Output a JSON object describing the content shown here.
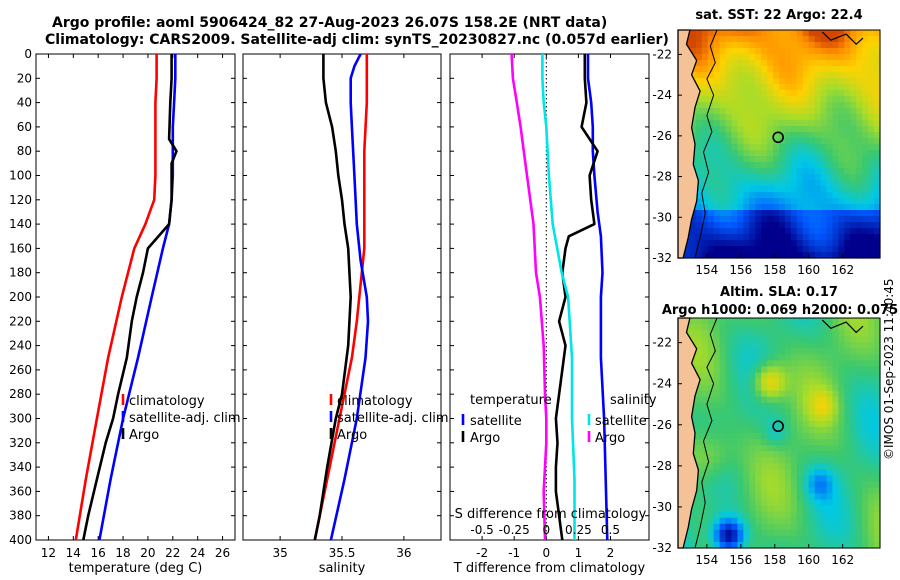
{
  "header": {
    "line1": "Argo profile: aoml 5906424_82 27-Aug-2023 26.07S 158.2E (NRT data)",
    "line2": "Climatology: CARS2009. Satellite-adj clim: synTS_20230827.nc (0.057d earlier)"
  },
  "watermark": "©IMOS 01-Sep-2023 11:40:45",
  "colors": {
    "climatology": "#ff0000",
    "satellite": "#0000ff",
    "argo": "#000000",
    "temp_diff": "#00e5e5",
    "sal_diff": "#ff00ff"
  },
  "chart_data": [
    {
      "type": "line",
      "name": "temperature-profile",
      "xlabel": "temperature (deg C)",
      "ylabel": "",
      "xlim": [
        11,
        27
      ],
      "ylim": [
        0,
        400
      ],
      "xticks": [
        12,
        14,
        16,
        18,
        20,
        22,
        24,
        26
      ],
      "yticks": [
        0,
        20,
        40,
        60,
        80,
        100,
        120,
        140,
        160,
        180,
        200,
        220,
        240,
        260,
        280,
        300,
        320,
        340,
        360,
        380,
        400
      ],
      "legend": [
        "climatology",
        "satellite-adj. clim",
        "Argo"
      ],
      "series": [
        {
          "name": "climatology",
          "color": "#ff0000",
          "depth": [
            0,
            20,
            40,
            80,
            100,
            120,
            140,
            160,
            200,
            250,
            300,
            350,
            400
          ],
          "values": [
            20.7,
            20.7,
            20.6,
            20.6,
            20.6,
            20.5,
            19.8,
            18.9,
            17.9,
            16.8,
            15.9,
            15.0,
            14.2
          ]
        },
        {
          "name": "satellite-adj. clim",
          "color": "#0000ff",
          "depth": [
            0,
            20,
            40,
            60,
            80,
            100,
            120,
            140,
            160,
            200,
            250,
            300,
            350,
            400
          ],
          "values": [
            22.2,
            22.2,
            22.1,
            22.0,
            22.0,
            22.0,
            21.9,
            21.7,
            21.2,
            20.3,
            19.2,
            18.0,
            17.0,
            16.1
          ]
        },
        {
          "name": "Argo",
          "color": "#000000",
          "depth": [
            0,
            20,
            40,
            70,
            80,
            90,
            100,
            120,
            140,
            160,
            180,
            200,
            220,
            250,
            280,
            300,
            320,
            350,
            380,
            400
          ],
          "values": [
            21.9,
            21.9,
            21.8,
            21.7,
            22.3,
            21.9,
            21.9,
            21.9,
            21.7,
            20.0,
            19.6,
            19.1,
            18.7,
            18.3,
            17.6,
            17.2,
            16.6,
            15.9,
            15.2,
            14.8
          ]
        }
      ]
    },
    {
      "type": "line",
      "name": "salinity-profile",
      "xlabel": "salinity",
      "xlim": [
        34.7,
        36.3
      ],
      "ylim": [
        0,
        400
      ],
      "xticks": [
        35,
        35.5,
        36
      ],
      "legend": [
        "climatology",
        "satellite-adj. clim",
        "Argo"
      ],
      "series": [
        {
          "name": "climatology",
          "color": "#ff0000",
          "depth": [
            0,
            40,
            80,
            120,
            160,
            180,
            200,
            220,
            250,
            300,
            350,
            400
          ],
          "values": [
            35.7,
            35.7,
            35.68,
            35.68,
            35.68,
            35.66,
            35.64,
            35.62,
            35.58,
            35.48,
            35.38,
            35.28
          ]
        },
        {
          "name": "satellite-adj. clim",
          "color": "#0000ff",
          "depth": [
            0,
            10,
            20,
            40,
            60,
            100,
            140,
            170,
            200,
            220,
            250,
            300,
            350,
            400
          ],
          "values": [
            35.65,
            35.6,
            35.57,
            35.57,
            35.58,
            35.6,
            35.62,
            35.65,
            35.7,
            35.71,
            35.69,
            35.62,
            35.52,
            35.41
          ]
        },
        {
          "name": "Argo",
          "color": "#000000",
          "depth": [
            0,
            20,
            40,
            60,
            80,
            100,
            120,
            140,
            160,
            200,
            240,
            280,
            300,
            340,
            380,
            400
          ],
          "values": [
            35.35,
            35.35,
            35.37,
            35.42,
            35.45,
            35.47,
            35.5,
            35.52,
            35.55,
            35.57,
            35.55,
            35.5,
            35.45,
            35.38,
            35.32,
            35.28
          ]
        }
      ]
    },
    {
      "type": "line",
      "name": "difference-profile",
      "xlabel": "T difference from climatology",
      "xlabel_top": "S difference from climatology",
      "xlim": [
        -3,
        3.2
      ],
      "ylim": [
        0,
        400
      ],
      "xticks": [
        -2,
        -1,
        0,
        1,
        2
      ],
      "xtick_labels": [
        "-2",
        "-1",
        "0",
        "1",
        "2"
      ],
      "xticks_top": [
        -0.5,
        -0.25,
        0,
        0.25,
        0.5
      ],
      "xtick_top_labels": [
        "-0.5",
        "-0.25",
        "0",
        "0.25",
        "0.5"
      ],
      "legend_temperature": {
        "heading": "temperature",
        "items": [
          "satellite",
          "Argo"
        ]
      },
      "legend_salinity": {
        "heading": "salinity",
        "items": [
          "satellite",
          "Argo"
        ]
      },
      "series": [
        {
          "name": "T satellite",
          "color": "#0000ff",
          "depth": [
            0,
            20,
            40,
            60,
            80,
            100,
            130,
            150,
            180,
            200,
            250,
            300,
            350,
            400
          ],
          "values": [
            1.3,
            1.3,
            1.4,
            1.45,
            1.45,
            1.5,
            1.6,
            1.7,
            1.75,
            1.7,
            1.7,
            1.8,
            1.85,
            1.9
          ]
        },
        {
          "name": "T Argo",
          "color": "#000000",
          "depth": [
            0,
            20,
            40,
            60,
            80,
            100,
            120,
            140,
            150,
            160,
            180,
            200,
            220,
            240,
            260,
            280,
            300,
            320,
            340,
            360,
            380,
            400
          ],
          "values": [
            1.2,
            1.2,
            1.25,
            1.1,
            1.6,
            1.35,
            1.4,
            1.5,
            0.7,
            0.6,
            0.5,
            0.6,
            0.4,
            0.6,
            0.5,
            0.4,
            0.3,
            0.35,
            0.3,
            0.3,
            0.4,
            0.5
          ]
        },
        {
          "name": "S satellite",
          "color": "#00e5e5",
          "depth": [
            0,
            20,
            40,
            60,
            100,
            140,
            180,
            200,
            250,
            300,
            350,
            400
          ],
          "values": [
            -0.03,
            -0.03,
            -0.02,
            0,
            0.02,
            0.05,
            0.12,
            0.17,
            0.2,
            0.2,
            0.22,
            0.22
          ]
        },
        {
          "name": "S Argo",
          "color": "#ff00ff",
          "depth": [
            0,
            20,
            40,
            60,
            100,
            140,
            180,
            200,
            240,
            280,
            300,
            320,
            360,
            400
          ],
          "values": [
            -0.27,
            -0.26,
            -0.23,
            -0.2,
            -0.15,
            -0.1,
            -0.08,
            -0.05,
            -0.02,
            -0.01,
            0,
            0,
            -0.02,
            -0.01
          ]
        }
      ]
    },
    {
      "type": "heatmap",
      "name": "sst-map",
      "title": "sat. SST: 22 Argo: 22.4",
      "xlim": [
        152.3,
        164.2
      ],
      "ylim": [
        -32,
        -20.8
      ],
      "xticks": [
        154,
        156,
        158,
        160,
        162
      ],
      "yticks": [
        -22,
        -24,
        -26,
        -28,
        -30,
        -32
      ]
    },
    {
      "type": "heatmap",
      "name": "sla-map",
      "title": "Altim. SLA: 0.17",
      "subtitle": "Argo h1000: 0.069 h2000: 0.075",
      "xlim": [
        152.3,
        164.2
      ],
      "ylim": [
        -32,
        -20.8
      ],
      "xticks": [
        154,
        156,
        158,
        160,
        162
      ],
      "yticks": [
        -22,
        -24,
        -26,
        -28,
        -30,
        -32
      ]
    }
  ]
}
